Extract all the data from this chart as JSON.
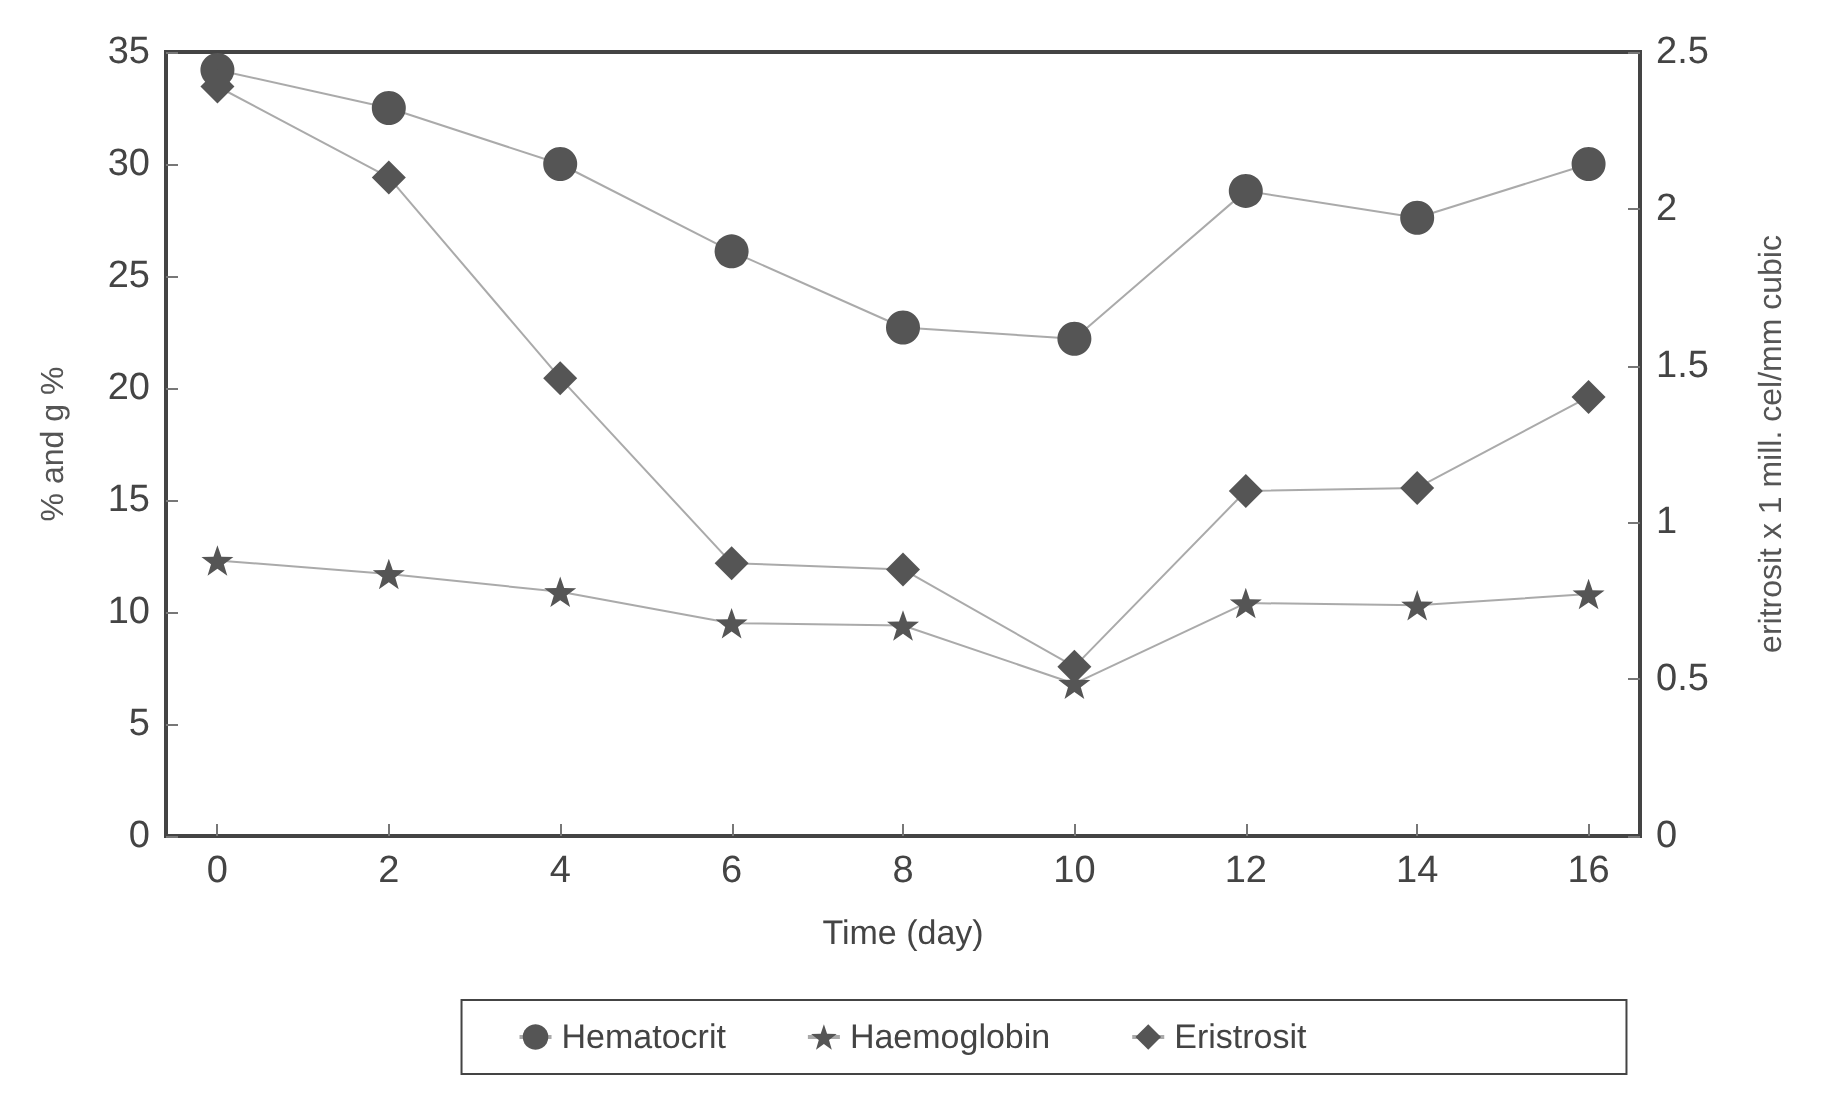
{
  "chart_data": {
    "type": "line",
    "xlabel": "Time (day)",
    "ylabel": "% and g %",
    "y2label": "eritrosit x 1 mill. cel/mm cubic",
    "x": [
      0,
      2,
      4,
      6,
      8,
      10,
      12,
      14,
      16
    ],
    "xlim": [
      -0.6,
      16.6
    ],
    "xticks": [
      0,
      2,
      4,
      6,
      8,
      10,
      12,
      14,
      16
    ],
    "ylim": [
      0,
      35
    ],
    "yticks": [
      0,
      5,
      10,
      15,
      20,
      25,
      30,
      35
    ],
    "y2lim": [
      0,
      2.5
    ],
    "y2ticks": [
      0,
      0.5,
      1,
      1.5,
      2,
      2.5
    ],
    "series": [
      {
        "name": "Hematocrit",
        "color": "#555555",
        "marker": "circle",
        "values": [
          34.2,
          32.5,
          30.0,
          26.1,
          22.7,
          22.2,
          28.8,
          27.6,
          30.0
        ]
      },
      {
        "name": "Haemoglobin",
        "color": "#555555",
        "marker": "star",
        "values": [
          12.3,
          11.7,
          10.9,
          9.5,
          9.4,
          6.8,
          10.4,
          10.3,
          10.8
        ]
      },
      {
        "name": "Eristrosit",
        "color": "#555555",
        "marker": "diamond",
        "axis": "y2",
        "values": [
          2.39,
          2.1,
          1.46,
          0.87,
          0.85,
          0.54,
          1.1,
          1.11,
          1.4
        ]
      }
    ],
    "grid": false,
    "legend": "bottom",
    "line_style": "solid"
  }
}
